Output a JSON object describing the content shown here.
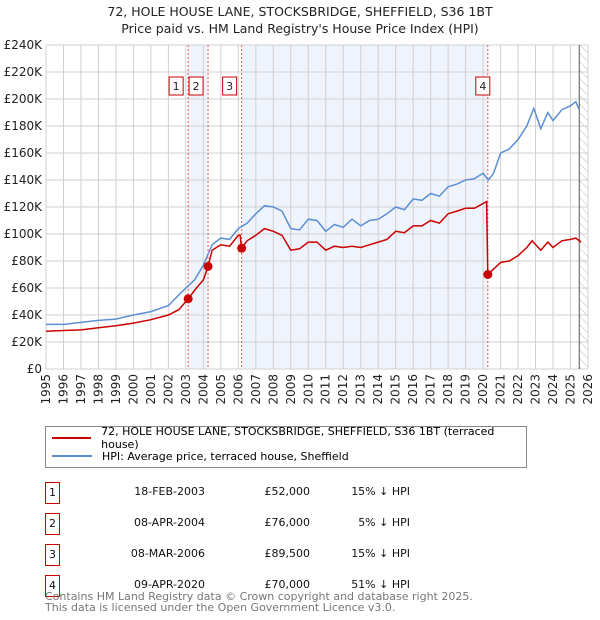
{
  "title": "72, HOLE HOUSE LANE, STOCKSBRIDGE, SHEFFIELD, S36 1BT",
  "subtitle": "Price paid vs. HM Land Registry's House Price Index (HPI)",
  "colors": {
    "price": "#cc0000",
    "hpi": "#5b8fd4",
    "shade": "#eef3fc"
  },
  "chart_data": {
    "type": "line",
    "xlim": [
      1995,
      2026
    ],
    "ylim": [
      0,
      240000
    ],
    "yticks": [
      {
        "v": 0,
        "label": "£0"
      },
      {
        "v": 20000,
        "label": "£20K"
      },
      {
        "v": 40000,
        "label": "£40K"
      },
      {
        "v": 60000,
        "label": "£60K"
      },
      {
        "v": 80000,
        "label": "£80K"
      },
      {
        "v": 100000,
        "label": "£100K"
      },
      {
        "v": 120000,
        "label": "£120K"
      },
      {
        "v": 140000,
        "label": "£140K"
      },
      {
        "v": 160000,
        "label": "£160K"
      },
      {
        "v": 180000,
        "label": "£180K"
      },
      {
        "v": 200000,
        "label": "£200K"
      },
      {
        "v": 220000,
        "label": "£220K"
      },
      {
        "v": 240000,
        "label": "£240K"
      }
    ],
    "xticks": [
      "1995",
      "1996",
      "1997",
      "1998",
      "1999",
      "2000",
      "2001",
      "2002",
      "2003",
      "2004",
      "2005",
      "2006",
      "2007",
      "2008",
      "2009",
      "2010",
      "2011",
      "2012",
      "2013",
      "2014",
      "2015",
      "2016",
      "2017",
      "2018",
      "2019",
      "2020",
      "2021",
      "2022",
      "2023",
      "2024",
      "2025",
      "2026"
    ],
    "series": [
      {
        "name": "72, HOLE HOUSE LANE, STOCKSBRIDGE, SHEFFIELD, S36 1BT (terraced house)",
        "color": "#cc0000",
        "x": [
          1995,
          1996,
          1997,
          1998,
          1999,
          2000,
          2001,
          2002,
          2002.6,
          2003.13,
          2003.6,
          2004,
          2004.27,
          2004.5,
          2005,
          2005.5,
          2006,
          2006.1,
          2006.19,
          2006.5,
          2007,
          2007.5,
          2008,
          2008.5,
          2009,
          2009.5,
          2010,
          2010.5,
          2011,
          2011.5,
          2012,
          2012.5,
          2013,
          2013.5,
          2014,
          2014.5,
          2015,
          2015.5,
          2016,
          2016.5,
          2017,
          2017.5,
          2018,
          2018.5,
          2019,
          2019.5,
          2020.2,
          2020.27,
          2020.6,
          2021,
          2021.5,
          2022,
          2022.5,
          2022.8,
          2023.3,
          2023.7,
          2024,
          2024.5,
          2025,
          2025.3,
          2025.6
        ],
        "y": [
          28000,
          28500,
          29000,
          30500,
          32000,
          34000,
          36500,
          40000,
          44000,
          52000,
          60000,
          66000,
          76000,
          88000,
          92000,
          91000,
          99000,
          99000,
          89500,
          95000,
          99000,
          104000,
          102000,
          99000,
          88000,
          89000,
          94000,
          94000,
          88000,
          91000,
          90000,
          91000,
          90000,
          92000,
          94000,
          96000,
          102000,
          101000,
          106000,
          106000,
          110000,
          108000,
          115000,
          117000,
          119000,
          119000,
          124000,
          70000,
          74000,
          79000,
          80000,
          84000,
          90000,
          95000,
          88000,
          94000,
          90000,
          95000,
          96000,
          97000,
          94000
        ]
      },
      {
        "name": "HPI: Average price, terraced house, Sheffield",
        "color": "#5b8fd4",
        "x": [
          1995,
          1996,
          1997,
          1998,
          1999,
          2000,
          2001,
          2002,
          2002.6,
          2003,
          2003.5,
          2004,
          2004.5,
          2005,
          2005.5,
          2006,
          2006.5,
          2007,
          2007.5,
          2008,
          2008.5,
          2009,
          2009.5,
          2010,
          2010.5,
          2011,
          2011.5,
          2012,
          2012.5,
          2013,
          2013.5,
          2014,
          2014.5,
          2015,
          2015.5,
          2016,
          2016.5,
          2017,
          2017.5,
          2018,
          2018.5,
          2019,
          2019.5,
          2020,
          2020.3,
          2020.6,
          2021,
          2021.5,
          2022,
          2022.5,
          2022.9,
          2023.3,
          2023.7,
          2024,
          2024.5,
          2025,
          2025.3,
          2025.5
        ],
        "y": [
          33000,
          33000,
          34500,
          36000,
          37000,
          40000,
          42500,
          47000,
          55000,
          60000,
          66000,
          77000,
          92000,
          97000,
          96000,
          104000,
          108000,
          115000,
          121000,
          120000,
          117000,
          104000,
          103000,
          111000,
          110000,
          102000,
          107000,
          105000,
          111000,
          106000,
          110000,
          111000,
          115000,
          120000,
          118000,
          126000,
          125000,
          130000,
          128000,
          135000,
          137000,
          140000,
          141000,
          145000,
          140000,
          145000,
          160000,
          163000,
          170000,
          180000,
          193000,
          178000,
          190000,
          184000,
          192000,
          195000,
          198000,
          192000
        ]
      }
    ],
    "sales": [
      {
        "label": "1",
        "x": 2003.13,
        "date": "18-FEB-2003",
        "price": 52000,
        "price_text": "£52,000",
        "diff": "15% ↓ HPI"
      },
      {
        "label": "2",
        "x": 2004.27,
        "date": "08-APR-2004",
        "price": 76000,
        "price_text": "£76,000",
        "diff": "5% ↓ HPI"
      },
      {
        "label": "3",
        "x": 2006.19,
        "date": "08-MAR-2006",
        "price": 89500,
        "price_text": "£89,500",
        "diff": "15% ↓ HPI"
      },
      {
        "label": "4",
        "x": 2020.27,
        "date": "09-APR-2020",
        "price": 70000,
        "price_text": "£70,000",
        "diff": "51% ↓ HPI"
      }
    ],
    "shaded_ranges": [
      [
        2003.13,
        2004.27
      ],
      [
        2006.19,
        2020.27
      ]
    ],
    "forecast_from": 2025.5,
    "grid": true
  },
  "legend": {
    "price_label": "72, HOLE HOUSE LANE, STOCKSBRIDGE, SHEFFIELD, S36 1BT (terraced house)",
    "hpi_label": "HPI: Average price, terraced house, Sheffield"
  },
  "footer": {
    "line1": "Contains HM Land Registry data © Crown copyright and database right 2025.",
    "line2": "This data is licensed under the Open Government Licence v3.0."
  }
}
